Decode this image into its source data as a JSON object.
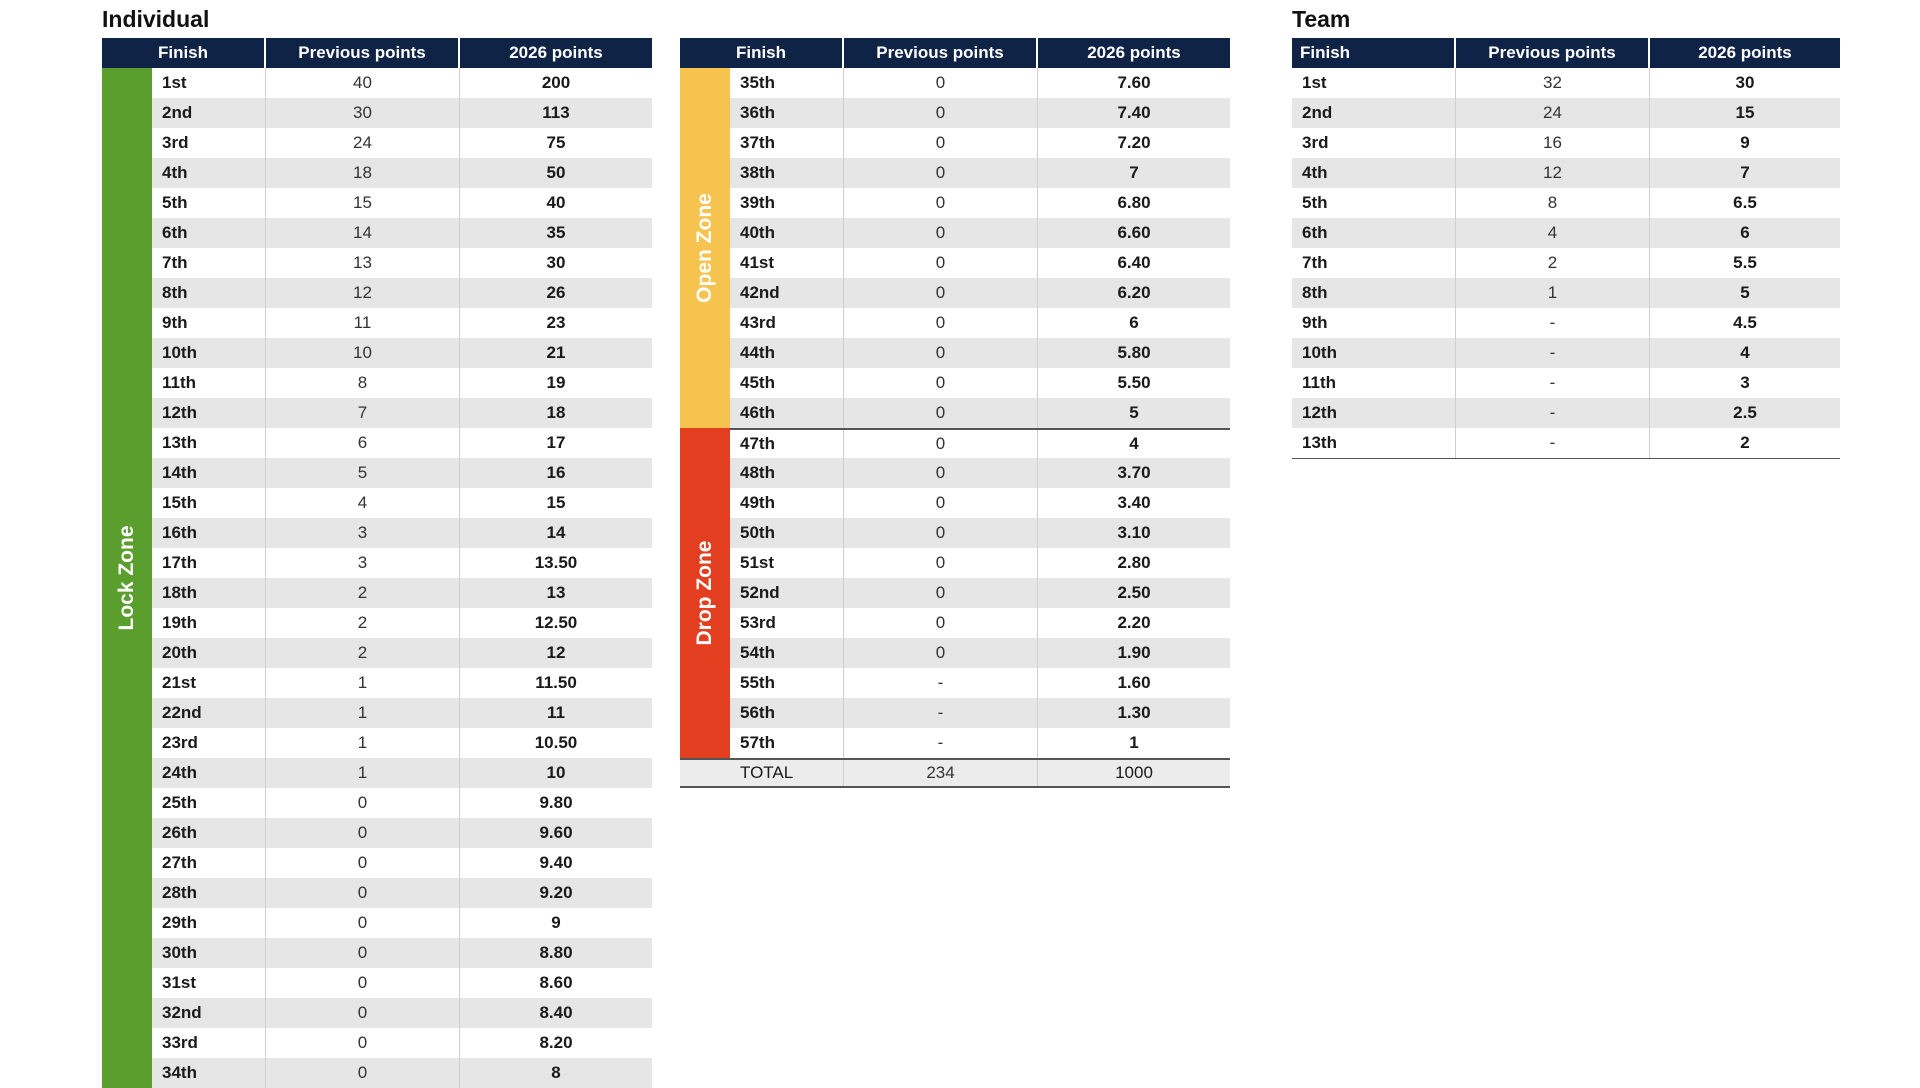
{
  "individual": {
    "title": "Individual",
    "headers": {
      "finish": "Finish",
      "previous": "Previous points",
      "new": "2026 points"
    },
    "zones": [
      {
        "label": "Lock Zone",
        "color": "#5a9e2e"
      }
    ],
    "rows": [
      {
        "finish": "1st",
        "prev": "40",
        "new": "200"
      },
      {
        "finish": "2nd",
        "prev": "30",
        "new": "113"
      },
      {
        "finish": "3rd",
        "prev": "24",
        "new": "75"
      },
      {
        "finish": "4th",
        "prev": "18",
        "new": "50"
      },
      {
        "finish": "5th",
        "prev": "15",
        "new": "40"
      },
      {
        "finish": "6th",
        "prev": "14",
        "new": "35"
      },
      {
        "finish": "7th",
        "prev": "13",
        "new": "30"
      },
      {
        "finish": "8th",
        "prev": "12",
        "new": "26"
      },
      {
        "finish": "9th",
        "prev": "11",
        "new": "23"
      },
      {
        "finish": "10th",
        "prev": "10",
        "new": "21"
      },
      {
        "finish": "11th",
        "prev": "8",
        "new": "19"
      },
      {
        "finish": "12th",
        "prev": "7",
        "new": "18"
      },
      {
        "finish": "13th",
        "prev": "6",
        "new": "17"
      },
      {
        "finish": "14th",
        "prev": "5",
        "new": "16"
      },
      {
        "finish": "15th",
        "prev": "4",
        "new": "15"
      },
      {
        "finish": "16th",
        "prev": "3",
        "new": "14"
      },
      {
        "finish": "17th",
        "prev": "3",
        "new": "13.50"
      },
      {
        "finish": "18th",
        "prev": "2",
        "new": "13"
      },
      {
        "finish": "19th",
        "prev": "2",
        "new": "12.50"
      },
      {
        "finish": "20th",
        "prev": "2",
        "new": "12"
      },
      {
        "finish": "21st",
        "prev": "1",
        "new": "11.50"
      },
      {
        "finish": "22nd",
        "prev": "1",
        "new": "11"
      },
      {
        "finish": "23rd",
        "prev": "1",
        "new": "10.50"
      },
      {
        "finish": "24th",
        "prev": "1",
        "new": "10"
      },
      {
        "finish": "25th",
        "prev": "0",
        "new": "9.80"
      },
      {
        "finish": "26th",
        "prev": "0",
        "new": "9.60"
      },
      {
        "finish": "27th",
        "prev": "0",
        "new": "9.40"
      },
      {
        "finish": "28th",
        "prev": "0",
        "new": "9.20"
      },
      {
        "finish": "29th",
        "prev": "0",
        "new": "9"
      },
      {
        "finish": "30th",
        "prev": "0",
        "new": "8.80"
      },
      {
        "finish": "31st",
        "prev": "0",
        "new": "8.60"
      },
      {
        "finish": "32nd",
        "prev": "0",
        "new": "8.40"
      },
      {
        "finish": "33rd",
        "prev": "0",
        "new": "8.20"
      },
      {
        "finish": "34th",
        "prev": "0",
        "new": "8"
      }
    ]
  },
  "individual2": {
    "headers": {
      "finish": "Finish",
      "previous": "Previous points",
      "new": "2026 points"
    },
    "zones": [
      {
        "label": "Open Zone",
        "color": "#f5c34e"
      },
      {
        "label": "Drop Zone",
        "color": "#e23e1f"
      }
    ],
    "rows": [
      {
        "finish": "35th",
        "prev": "0",
        "new": "7.60"
      },
      {
        "finish": "36th",
        "prev": "0",
        "new": "7.40"
      },
      {
        "finish": "37th",
        "prev": "0",
        "new": "7.20"
      },
      {
        "finish": "38th",
        "prev": "0",
        "new": "7"
      },
      {
        "finish": "39th",
        "prev": "0",
        "new": "6.80"
      },
      {
        "finish": "40th",
        "prev": "0",
        "new": "6.60"
      },
      {
        "finish": "41st",
        "prev": "0",
        "new": "6.40"
      },
      {
        "finish": "42nd",
        "prev": "0",
        "new": "6.20"
      },
      {
        "finish": "43rd",
        "prev": "0",
        "new": "6"
      },
      {
        "finish": "44th",
        "prev": "0",
        "new": "5.80"
      },
      {
        "finish": "45th",
        "prev": "0",
        "new": "5.50"
      },
      {
        "finish": "46th",
        "prev": "0",
        "new": "5"
      },
      {
        "finish": "47th",
        "prev": "0",
        "new": "4"
      },
      {
        "finish": "48th",
        "prev": "0",
        "new": "3.70"
      },
      {
        "finish": "49th",
        "prev": "0",
        "new": "3.40"
      },
      {
        "finish": "50th",
        "prev": "0",
        "new": "3.10"
      },
      {
        "finish": "51st",
        "prev": "0",
        "new": "2.80"
      },
      {
        "finish": "52nd",
        "prev": "0",
        "new": "2.50"
      },
      {
        "finish": "53rd",
        "prev": "0",
        "new": "2.20"
      },
      {
        "finish": "54th",
        "prev": "0",
        "new": "1.90"
      },
      {
        "finish": "55th",
        "prev": "-",
        "new": "1.60"
      },
      {
        "finish": "56th",
        "prev": "-",
        "new": "1.30"
      },
      {
        "finish": "57th",
        "prev": "-",
        "new": "1"
      }
    ],
    "total": {
      "label": "TOTAL",
      "prev": "234",
      "new": "1000"
    }
  },
  "team": {
    "title": "Team",
    "headers": {
      "finish": "Finish",
      "previous": "Previous points",
      "new": "2026 points"
    },
    "rows": [
      {
        "finish": "1st",
        "prev": "32",
        "new": "30"
      },
      {
        "finish": "2nd",
        "prev": "24",
        "new": "15"
      },
      {
        "finish": "3rd",
        "prev": "16",
        "new": "9"
      },
      {
        "finish": "4th",
        "prev": "12",
        "new": "7"
      },
      {
        "finish": "5th",
        "prev": "8",
        "new": "6.5"
      },
      {
        "finish": "6th",
        "prev": "4",
        "new": "6"
      },
      {
        "finish": "7th",
        "prev": "2",
        "new": "5.5"
      },
      {
        "finish": "8th",
        "prev": "1",
        "new": "5"
      },
      {
        "finish": "9th",
        "prev": "-",
        "new": "4.5"
      },
      {
        "finish": "10th",
        "prev": "-",
        "new": "4"
      },
      {
        "finish": "11th",
        "prev": "-",
        "new": "3"
      },
      {
        "finish": "12th",
        "prev": "-",
        "new": "2.5"
      },
      {
        "finish": "13th",
        "prev": "-",
        "new": "2"
      }
    ]
  }
}
